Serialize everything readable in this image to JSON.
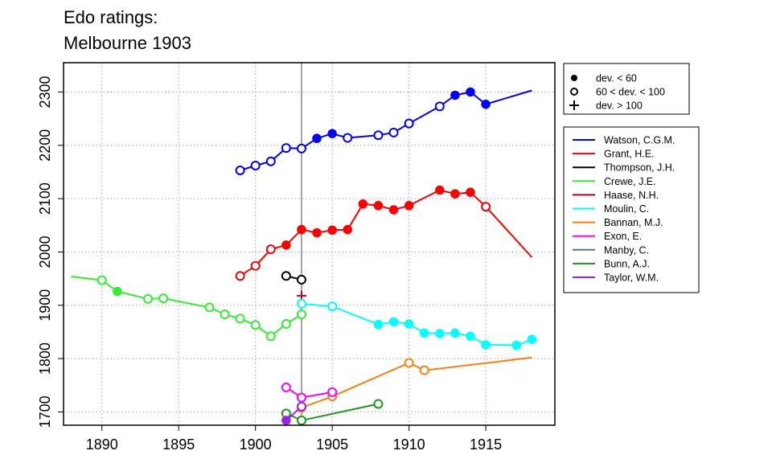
{
  "chart_data": {
    "type": "line",
    "title": "Edo ratings:",
    "subtitle": "Melbourne 1903",
    "xlabel": "",
    "ylabel": "",
    "xlim": [
      1887.5,
      1919.5
    ],
    "ylim": [
      1675,
      2355
    ],
    "xticks": [
      1890,
      1895,
      1900,
      1905,
      1910,
      1915
    ],
    "yticks": [
      1700,
      1800,
      1900,
      2000,
      2100,
      2200,
      2300
    ],
    "grid": true,
    "reference_line_x": 1903,
    "marker_legend": [
      {
        "symbol": "filled-circle",
        "label": "dev. < 60"
      },
      {
        "symbol": "open-circle",
        "label": "60 < dev. < 100"
      },
      {
        "symbol": "plus",
        "label": "dev. > 100"
      }
    ],
    "series": [
      {
        "name": "Watson, C.G.M.",
        "color": "#0000ff",
        "points": [
          {
            "x": 1899,
            "y": 2153,
            "m": "open"
          },
          {
            "x": 1900,
            "y": 2162,
            "m": "open"
          },
          {
            "x": 1901,
            "y": 2170,
            "m": "open"
          },
          {
            "x": 1902,
            "y": 2195,
            "m": "open"
          },
          {
            "x": 1903,
            "y": 2194,
            "m": "open"
          },
          {
            "x": 1904,
            "y": 2213,
            "m": "filled"
          },
          {
            "x": 1905,
            "y": 2222,
            "m": "filled"
          },
          {
            "x": 1906,
            "y": 2214,
            "m": "open"
          },
          {
            "x": 1908,
            "y": 2219,
            "m": "open"
          },
          {
            "x": 1909,
            "y": 2224,
            "m": "open"
          },
          {
            "x": 1910,
            "y": 2241,
            "m": "open"
          },
          {
            "x": 1912,
            "y": 2273,
            "m": "open"
          },
          {
            "x": 1913,
            "y": 2294,
            "m": "filled"
          },
          {
            "x": 1914,
            "y": 2300,
            "m": "filled"
          },
          {
            "x": 1915,
            "y": 2277,
            "m": "filled"
          },
          {
            "x": 1918,
            "y": 2303,
            "m": "none"
          }
        ]
      },
      {
        "name": "Grant, H.E.",
        "color": "#ff0000",
        "points": [
          {
            "x": 1899,
            "y": 1955,
            "m": "open"
          },
          {
            "x": 1900,
            "y": 1974,
            "m": "open"
          },
          {
            "x": 1901,
            "y": 2005,
            "m": "open"
          },
          {
            "x": 1902,
            "y": 2013,
            "m": "filled"
          },
          {
            "x": 1903,
            "y": 2042,
            "m": "filled"
          },
          {
            "x": 1904,
            "y": 2036,
            "m": "filled"
          },
          {
            "x": 1905,
            "y": 2041,
            "m": "filled"
          },
          {
            "x": 1906,
            "y": 2042,
            "m": "filled"
          },
          {
            "x": 1907,
            "y": 2090,
            "m": "filled"
          },
          {
            "x": 1908,
            "y": 2087,
            "m": "filled"
          },
          {
            "x": 1909,
            "y": 2079,
            "m": "filled"
          },
          {
            "x": 1910,
            "y": 2087,
            "m": "filled"
          },
          {
            "x": 1912,
            "y": 2116,
            "m": "filled"
          },
          {
            "x": 1913,
            "y": 2109,
            "m": "filled"
          },
          {
            "x": 1914,
            "y": 2112,
            "m": "filled"
          },
          {
            "x": 1915,
            "y": 2085,
            "m": "open"
          },
          {
            "x": 1918,
            "y": 1990,
            "m": "none"
          }
        ]
      },
      {
        "name": "Thompson, J.H.",
        "color": "#000000",
        "points": [
          {
            "x": 1902,
            "y": 1955,
            "m": "open"
          },
          {
            "x": 1903,
            "y": 1948,
            "m": "open"
          }
        ]
      },
      {
        "name": "Crewe, J.E.",
        "color": "#33ee33",
        "points": [
          {
            "x": 1888,
            "y": 1954,
            "m": "none"
          },
          {
            "x": 1890,
            "y": 1947,
            "m": "open"
          },
          {
            "x": 1891,
            "y": 1926,
            "m": "filled"
          },
          {
            "x": 1893,
            "y": 1912,
            "m": "open"
          },
          {
            "x": 1894,
            "y": 1913,
            "m": "open"
          },
          {
            "x": 1897,
            "y": 1896,
            "m": "open"
          },
          {
            "x": 1898,
            "y": 1883,
            "m": "open"
          },
          {
            "x": 1899,
            "y": 1875,
            "m": "open"
          },
          {
            "x": 1900,
            "y": 1863,
            "m": "open"
          },
          {
            "x": 1901,
            "y": 1842,
            "m": "open"
          },
          {
            "x": 1902,
            "y": 1865,
            "m": "open"
          },
          {
            "x": 1903,
            "y": 1883,
            "m": "open"
          }
        ]
      },
      {
        "name": "Haase, N.H.",
        "color": "#bb0022",
        "points": [
          {
            "x": 1903,
            "y": 1918,
            "m": "plus"
          }
        ]
      },
      {
        "name": "Moulin, C.",
        "color": "#00ffff",
        "points": [
          {
            "x": 1903,
            "y": 1903,
            "m": "open"
          },
          {
            "x": 1905,
            "y": 1898,
            "m": "open"
          },
          {
            "x": 1908,
            "y": 1864,
            "m": "filled"
          },
          {
            "x": 1909,
            "y": 1869,
            "m": "filled"
          },
          {
            "x": 1910,
            "y": 1865,
            "m": "filled"
          },
          {
            "x": 1911,
            "y": 1848,
            "m": "filled"
          },
          {
            "x": 1912,
            "y": 1847,
            "m": "filled"
          },
          {
            "x": 1913,
            "y": 1848,
            "m": "filled"
          },
          {
            "x": 1914,
            "y": 1842,
            "m": "filled"
          },
          {
            "x": 1915,
            "y": 1826,
            "m": "filled"
          },
          {
            "x": 1917,
            "y": 1825,
            "m": "filled"
          },
          {
            "x": 1918,
            "y": 1836,
            "m": "filled"
          }
        ]
      },
      {
        "name": "Bannan, M.J.",
        "color": "#ff7f0e",
        "points": [
          {
            "x": 1903,
            "y": 1708,
            "m": "open"
          },
          {
            "x": 1905,
            "y": 1729,
            "m": "open"
          },
          {
            "x": 1910,
            "y": 1792,
            "m": "open"
          },
          {
            "x": 1911,
            "y": 1778,
            "m": "open"
          },
          {
            "x": 1918,
            "y": 1802,
            "m": "none"
          }
        ]
      },
      {
        "name": "Exon, E.",
        "color": "#ff00ff",
        "points": [
          {
            "x": 1902,
            "y": 1746,
            "m": "open"
          },
          {
            "x": 1903,
            "y": 1727,
            "m": "open"
          },
          {
            "x": 1905,
            "y": 1737,
            "m": "open"
          }
        ]
      },
      {
        "name": "Manby, C.",
        "color": "#557788",
        "points": [
          {
            "x": 1903,
            "y": 1712,
            "m": "plus"
          }
        ]
      },
      {
        "name": "Bunn, A.J.",
        "color": "#1a9a1a",
        "points": [
          {
            "x": 1902,
            "y": 1697,
            "m": "open"
          },
          {
            "x": 1903,
            "y": 1684,
            "m": "open"
          },
          {
            "x": 1908,
            "y": 1715,
            "m": "open"
          }
        ]
      },
      {
        "name": "Taylor, W.M.",
        "color": "#9922ee",
        "points": [
          {
            "x": 1902,
            "y": 1684,
            "m": "filled"
          },
          {
            "x": 1903,
            "y": 1710,
            "m": "open"
          }
        ]
      }
    ]
  }
}
